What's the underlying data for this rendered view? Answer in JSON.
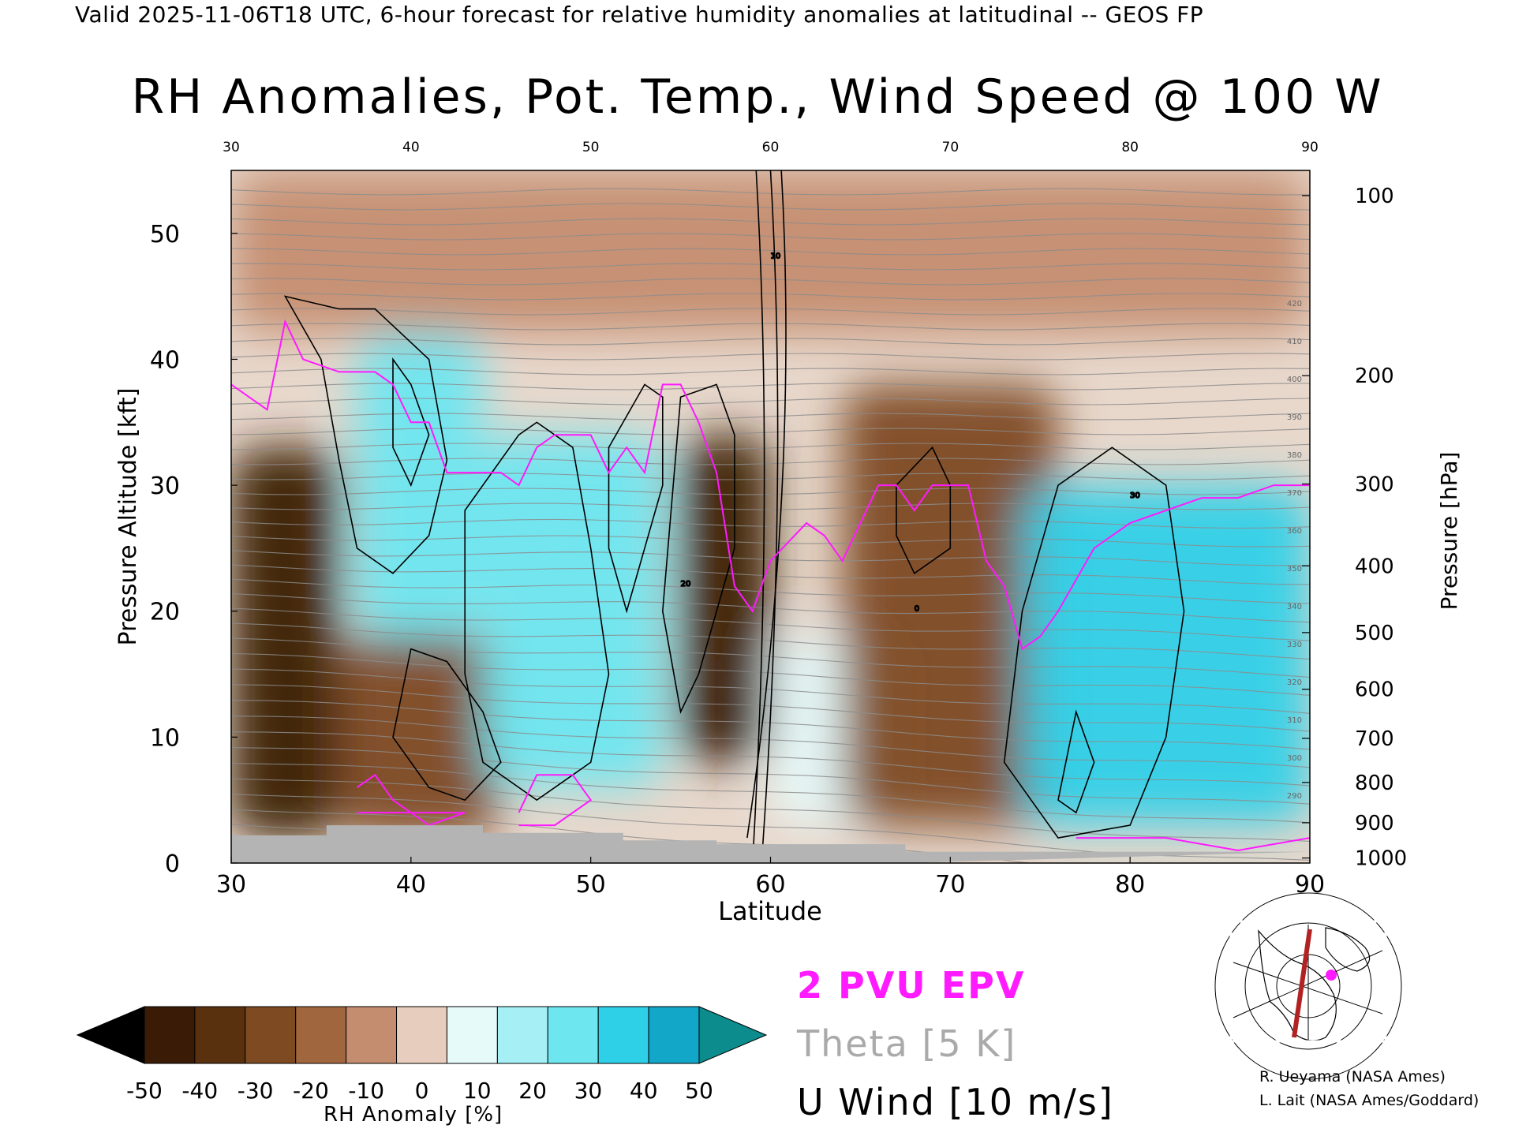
{
  "header": "Valid 2025-11-06T18 UTC, 6-hour forecast for relative humidity anomalies at latitudinal -- GEOS FP",
  "chart_data": {
    "type": "heatmap",
    "title": "RH Anomalies, Pot. Temp., Wind Speed @ 100 W",
    "xlabel": "Latitude",
    "ylabel": "Pressure Altitude [kft]",
    "y2label": "Pressure [hPa]",
    "xlim": [
      30,
      90
    ],
    "ylim": [
      0,
      55
    ],
    "x_ticks": [
      30,
      40,
      50,
      60,
      70,
      80,
      90
    ],
    "y_ticks": [
      0,
      10,
      20,
      30,
      40,
      50
    ],
    "pressure_ticks": [
      {
        "label": "100",
        "kft": 53.0
      },
      {
        "label": "200",
        "kft": 38.7
      },
      {
        "label": "300",
        "kft": 30.1
      },
      {
        "label": "400",
        "kft": 23.6
      },
      {
        "label": "500",
        "kft": 18.3
      },
      {
        "label": "600",
        "kft": 13.8
      },
      {
        "label": "700",
        "kft": 9.9
      },
      {
        "label": "800",
        "kft": 6.4
      },
      {
        "label": "900",
        "kft": 3.2
      },
      {
        "label": "1000",
        "kft": 0.4
      }
    ],
    "anomaly_regions": [
      {
        "sign": "dry",
        "lat": [
          30,
          36
        ],
        "kft": [
          2,
          33
        ],
        "value": -45
      },
      {
        "sign": "dry",
        "lat": [
          36,
          45
        ],
        "kft": [
          2,
          18
        ],
        "value": -30
      },
      {
        "sign": "wet",
        "lat": [
          37,
          44
        ],
        "kft": [
          18,
          42
        ],
        "value": 30
      },
      {
        "sign": "wet",
        "lat": [
          44,
          54
        ],
        "kft": [
          6,
          34
        ],
        "value": 35
      },
      {
        "sign": "dry",
        "lat": [
          55,
          60
        ],
        "kft": [
          8,
          34
        ],
        "value": -45
      },
      {
        "sign": "wet",
        "lat": [
          60,
          67
        ],
        "kft": [
          3,
          18
        ],
        "value": 15
      },
      {
        "sign": "dry",
        "lat": [
          64,
          76
        ],
        "kft": [
          3,
          38
        ],
        "value": -30
      },
      {
        "sign": "wet",
        "lat": [
          74,
          90
        ],
        "kft": [
          3,
          30
        ],
        "value": 40
      },
      {
        "sign": "dry",
        "lat": [
          30,
          90
        ],
        "kft": [
          42,
          55
        ],
        "value": -8
      }
    ],
    "colorbar": {
      "label": "RH Anomaly [%]",
      "tick_labels": [
        "-50",
        "-40",
        "-30",
        "-20",
        "-10",
        "0",
        "10",
        "20",
        "30",
        "40",
        "50"
      ],
      "colors": [
        "#000000",
        "#3a1c06",
        "#5a310f",
        "#7d4a22",
        "#a0673f",
        "#c48d70",
        "#e6cdbd",
        "#e6fafa",
        "#a6f0f5",
        "#6ee6f0",
        "#2ed0e8",
        "#12a6c8",
        "#0c8c8c"
      ]
    },
    "theta_levels_K": [
      290,
      300,
      310,
      320,
      330,
      340,
      350,
      360,
      370,
      380,
      390,
      400,
      410,
      420
    ],
    "wind_contour_labels": [
      "0",
      "10",
      "20",
      "30"
    ]
  },
  "legend": {
    "epv": "2 PVU EPV",
    "theta": "Theta [5 K]",
    "wind": "U Wind [10 m/s]"
  },
  "credits": {
    "line1": "R. Ueyama (NASA Ames)",
    "line2": "L. Lait (NASA Ames/Goddard)"
  }
}
